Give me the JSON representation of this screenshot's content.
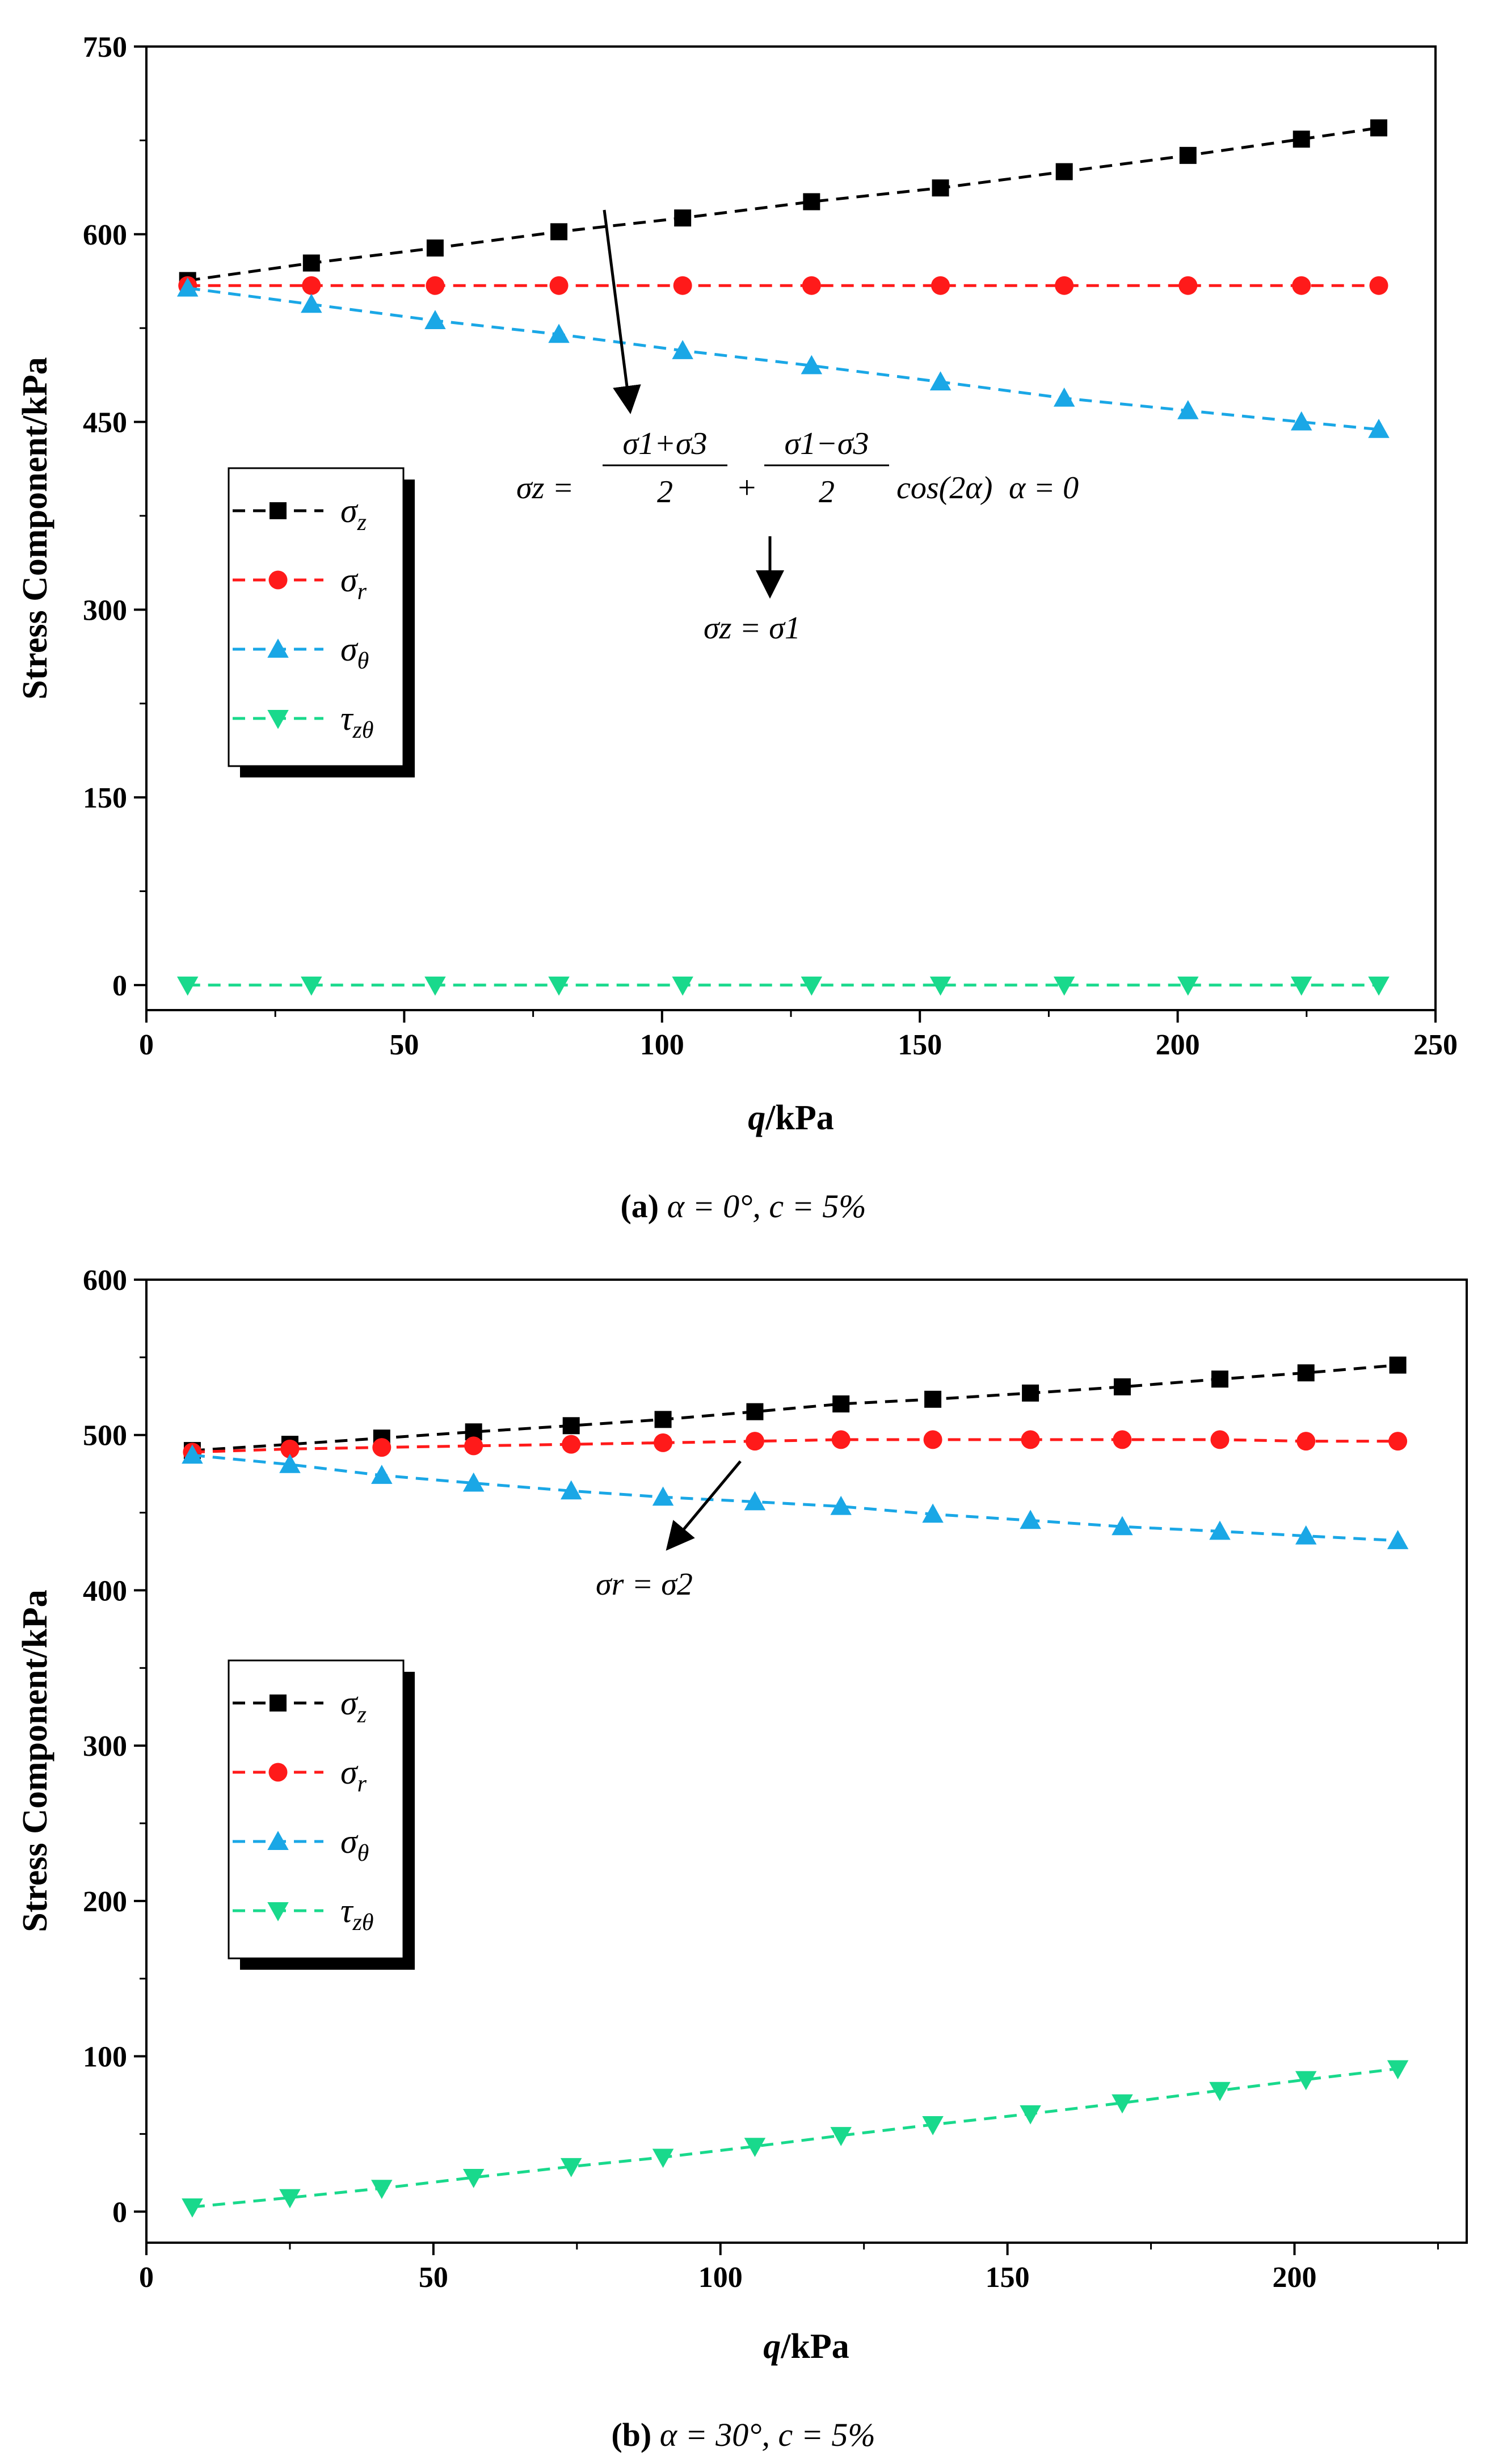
{
  "figure_captions": [
    {
      "letter": "(a)",
      "rest": " α = 0°, c = 5%"
    },
    {
      "letter": "(b)",
      "rest": " α = 30°, c = 5%"
    }
  ],
  "colors": {
    "sigma_z": "#000000",
    "sigma_r": "#ff1a1a",
    "sigma_theta": "#1aa7e6",
    "tau_ztheta": "#19d98c",
    "alpha_note": "#1aa7e6"
  },
  "chart_data": [
    {
      "type": "line",
      "panel": "a",
      "xlabel": "q/kPa",
      "ylabel": "Stress Component/kPa",
      "xlim": [
        0,
        250
      ],
      "ylim": [
        -20,
        750
      ],
      "xticks": [
        0,
        50,
        100,
        150,
        200,
        250
      ],
      "yticks": [
        0,
        150,
        300,
        450,
        600,
        750
      ],
      "grid": false,
      "legend_position": "middle-left",
      "series": [
        {
          "name": "σz",
          "sub": "z",
          "key": "sigma_z",
          "marker": "square",
          "x": [
            8,
            32,
            56,
            80,
            104,
            129,
            154,
            178,
            202,
            224,
            239
          ],
          "y": [
            563,
            577,
            589,
            602,
            613,
            626,
            637,
            650,
            663,
            676,
            685
          ]
        },
        {
          "name": "σr",
          "sub": "r",
          "key": "sigma_r",
          "marker": "circle",
          "x": [
            8,
            32,
            56,
            80,
            104,
            129,
            154,
            178,
            202,
            224,
            239
          ],
          "y": [
            559,
            559,
            559,
            559,
            559,
            559,
            559,
            559,
            559,
            559,
            559
          ]
        },
        {
          "name": "σθ",
          "sub": "θ",
          "key": "sigma_theta",
          "marker": "triangle-up",
          "x": [
            8,
            32,
            56,
            80,
            104,
            129,
            154,
            178,
            202,
            224,
            239
          ],
          "y": [
            557,
            544,
            531,
            520,
            507,
            495,
            482,
            469,
            459,
            450,
            444
          ]
        },
        {
          "name": "τzθ",
          "sub": "zθ",
          "key": "tau_ztheta",
          "marker": "triangle-down",
          "x": [
            8,
            32,
            56,
            80,
            104,
            129,
            154,
            178,
            202,
            224,
            239
          ],
          "y": [
            0,
            0,
            0,
            0,
            0,
            0,
            0,
            0,
            0,
            0,
            0
          ]
        }
      ],
      "annotations": {
        "formula_lhs": "σz =",
        "frac1_num": "σ1+σ3",
        "frac1_den": "2",
        "plus": "+",
        "frac2_num": "σ1−σ3",
        "frac2_den": "2",
        "cos_term": "cos(2α)",
        "alpha_note": "α = 0",
        "result": "σz = σ1"
      }
    },
    {
      "type": "line",
      "panel": "b",
      "xlabel": "q/kPa",
      "ylabel": "Stress Component/kPa",
      "xlim": [
        0,
        230
      ],
      "ylim": [
        -20,
        600
      ],
      "xticks": [
        0,
        50,
        100,
        150,
        200
      ],
      "yticks": [
        0,
        100,
        200,
        300,
        400,
        500,
        600
      ],
      "grid": false,
      "legend_position": "middle-left",
      "series": [
        {
          "name": "σz",
          "sub": "z",
          "key": "sigma_z",
          "marker": "square",
          "x": [
            8,
            25,
            41,
            57,
            74,
            90,
            106,
            121,
            137,
            154,
            170,
            187,
            202,
            218
          ],
          "y": [
            490,
            494,
            498,
            502,
            506,
            510,
            515,
            520,
            523,
            527,
            531,
            536,
            540,
            545
          ]
        },
        {
          "name": "σr",
          "sub": "r",
          "key": "sigma_r",
          "marker": "circle",
          "x": [
            8,
            25,
            41,
            57,
            74,
            90,
            106,
            121,
            137,
            154,
            170,
            187,
            202,
            218
          ],
          "y": [
            489,
            491,
            492,
            493,
            494,
            495,
            496,
            497,
            497,
            497,
            497,
            497,
            496,
            496
          ]
        },
        {
          "name": "σθ",
          "sub": "θ",
          "key": "sigma_theta",
          "marker": "triangle-up",
          "x": [
            8,
            25,
            41,
            57,
            74,
            90,
            106,
            121,
            137,
            154,
            170,
            187,
            202,
            218
          ],
          "y": [
            487,
            481,
            474,
            469,
            464,
            460,
            457,
            454,
            449,
            445,
            441,
            438,
            435,
            432
          ]
        },
        {
          "name": "τzθ",
          "sub": "zθ",
          "key": "tau_ztheta",
          "marker": "triangle-down",
          "x": [
            8,
            25,
            41,
            57,
            74,
            90,
            106,
            121,
            137,
            154,
            170,
            187,
            202,
            218
          ],
          "y": [
            3,
            9,
            15,
            22,
            29,
            35,
            42,
            49,
            56,
            63,
            70,
            78,
            85,
            92
          ]
        }
      ],
      "annotations": {
        "result": "σr = σ2"
      }
    }
  ]
}
